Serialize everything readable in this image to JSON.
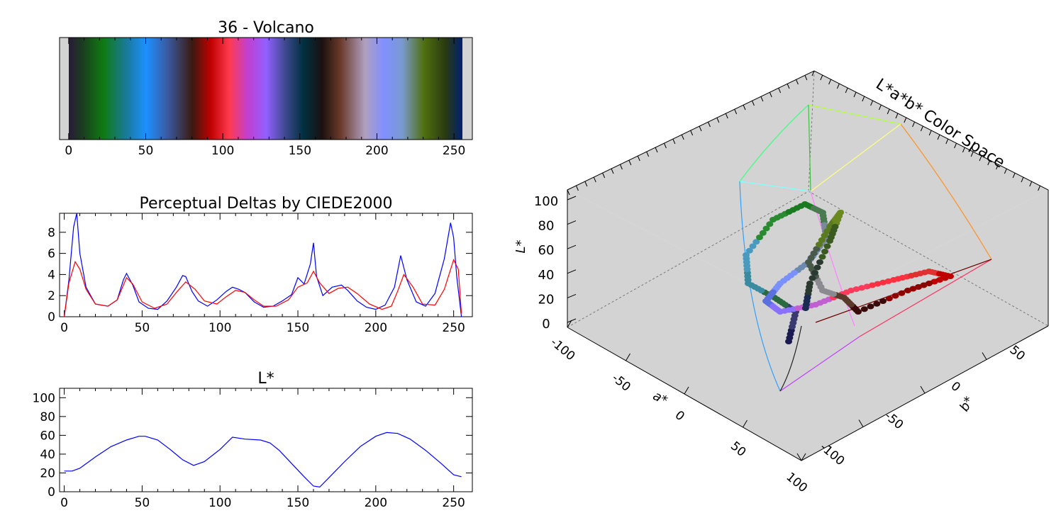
{
  "colorbar": {
    "title": "36 - Volcano",
    "x_ticks": [
      "0",
      "50",
      "100",
      "150",
      "200",
      "250"
    ],
    "stops": [
      [
        0,
        "#2a1a3a"
      ],
      [
        8,
        "#1a3a20"
      ],
      [
        22,
        "#0f7a10"
      ],
      [
        38,
        "#1a7aa0"
      ],
      [
        50,
        "#1e90ff"
      ],
      [
        64,
        "#3a5aa0"
      ],
      [
        80,
        "#3a1a10"
      ],
      [
        92,
        "#c00000"
      ],
      [
        104,
        "#ff3a50"
      ],
      [
        116,
        "#c040d0"
      ],
      [
        128,
        "#9060ff"
      ],
      [
        140,
        "#404a90"
      ],
      [
        152,
        "#003040"
      ],
      [
        164,
        "#1a1010"
      ],
      [
        176,
        "#6a3a2a"
      ],
      [
        192,
        "#b0a0c0"
      ],
      [
        204,
        "#8090ff"
      ],
      [
        216,
        "#7a9ad0"
      ],
      [
        230,
        "#507010"
      ],
      [
        244,
        "#2a3a10"
      ],
      [
        255,
        "#002070"
      ]
    ]
  },
  "deltas_chart": {
    "title": "Perceptual Deltas by CIEDE2000",
    "x_ticks": [
      "0",
      "50",
      "100",
      "150",
      "200",
      "250"
    ],
    "y_ticks": [
      "0",
      "2",
      "4",
      "6",
      "8"
    ],
    "ylim": [
      0,
      9.8
    ],
    "xlim": [
      -3,
      262
    ],
    "series_colors": [
      "#0000ff",
      "#ff0000"
    ]
  },
  "lstar_chart": {
    "title": "L*",
    "x_ticks": [
      "0",
      "50",
      "100",
      "150",
      "200",
      "250"
    ],
    "y_ticks": [
      "0",
      "20",
      "40",
      "60",
      "80",
      "100"
    ],
    "ylim": [
      0,
      110
    ],
    "xlim": [
      -3,
      262
    ],
    "line_color": "#0000ff"
  },
  "lab3d": {
    "title": "L*a*b* Color Space",
    "l_label": "L*",
    "a_label": "a*",
    "b_label": "b*",
    "l_ticks": [
      "0",
      "20",
      "40",
      "60",
      "80",
      "100"
    ],
    "a_ticks": [
      "-100",
      "-50",
      "0",
      "50",
      "100"
    ],
    "b_ticks": [
      "-100",
      "-50",
      "0",
      "50"
    ]
  },
  "chart_data": [
    {
      "type": "heatmap",
      "title": "36 - Volcano",
      "x": [
        0,
        255
      ]
    },
    {
      "type": "line",
      "title": "Perceptual Deltas by CIEDE2000",
      "xlim": [
        0,
        255
      ],
      "ylim": [
        0,
        9.8
      ],
      "series": [
        {
          "x": [
            0,
            3,
            6,
            8,
            10,
            14,
            20,
            28,
            34,
            38,
            40,
            44,
            48,
            54,
            60,
            66,
            72,
            76,
            78,
            82,
            86,
            92,
            98,
            104,
            108,
            112,
            116,
            122,
            128,
            134,
            140,
            146,
            150,
            154,
            158,
            160,
            162,
            166,
            172,
            178,
            182,
            188,
            194,
            200,
            206,
            212,
            216,
            220,
            226,
            232,
            238,
            244,
            248,
            250,
            252,
            255
          ],
          "values": [
            0,
            3.5,
            8.5,
            9.8,
            6,
            2.8,
            1.2,
            1.0,
            1.6,
            3.5,
            4.1,
            3.0,
            1.4,
            0.8,
            0.7,
            1.5,
            2.8,
            3.9,
            3.8,
            2.4,
            1.5,
            1.0,
            1.6,
            2.4,
            2.8,
            2.6,
            2.3,
            1.4,
            0.9,
            1.0,
            1.5,
            2.1,
            3.7,
            3.1,
            5.0,
            7.0,
            3.8,
            2.0,
            2.8,
            3.0,
            2.5,
            1.5,
            0.9,
            0.7,
            1.1,
            2.8,
            5.8,
            3.5,
            1.4,
            1.0,
            2.2,
            5.5,
            8.9,
            7.5,
            3.8,
            0
          ]
        },
        {
          "x": [
            0,
            3,
            7,
            10,
            14,
            20,
            28,
            34,
            40,
            44,
            50,
            58,
            66,
            72,
            78,
            84,
            90,
            98,
            104,
            110,
            116,
            122,
            128,
            136,
            144,
            150,
            156,
            160,
            164,
            170,
            176,
            182,
            188,
            196,
            204,
            210,
            214,
            218,
            224,
            230,
            238,
            244,
            250,
            253,
            255
          ],
          "values": [
            0,
            3.2,
            5.2,
            4.5,
            2.6,
            1.2,
            1.0,
            1.6,
            3.7,
            3.1,
            1.4,
            0.8,
            1.2,
            2.3,
            3.3,
            2.6,
            1.5,
            1.2,
            1.9,
            2.5,
            2.3,
            1.6,
            1.0,
            1.0,
            1.6,
            2.8,
            3.2,
            4.3,
            3.2,
            2.2,
            2.7,
            2.8,
            2.2,
            1.2,
            0.7,
            1.0,
            2.4,
            4.0,
            2.8,
            1.2,
            1.1,
            2.6,
            5.4,
            4.5,
            0.3
          ]
        }
      ]
    },
    {
      "type": "line",
      "title": "L*",
      "xlim": [
        0,
        255
      ],
      "ylim": [
        0,
        110
      ],
      "series": [
        {
          "x": [
            0,
            5,
            10,
            20,
            30,
            40,
            48,
            52,
            60,
            68,
            76,
            83,
            90,
            100,
            108,
            116,
            126,
            132,
            138,
            146,
            154,
            160,
            164,
            170,
            180,
            190,
            200,
            207,
            214,
            222,
            232,
            242,
            250,
            255
          ],
          "values": [
            22,
            22,
            25,
            37,
            48,
            55,
            59,
            59,
            55,
            45,
            34,
            28,
            32,
            45,
            58,
            56,
            55,
            52,
            44,
            30,
            16,
            6,
            5,
            15,
            32,
            48,
            59,
            63,
            62,
            56,
            44,
            30,
            18,
            16
          ]
        }
      ]
    },
    {
      "type": "scatter",
      "title": "L*a*b* Color Space",
      "xlabel": "a*",
      "ylabel": "b*",
      "zlabel": "L*",
      "xlim": [
        -100,
        100
      ],
      "ylim": [
        -100,
        100
      ],
      "zlim": [
        0,
        100
      ]
    }
  ]
}
